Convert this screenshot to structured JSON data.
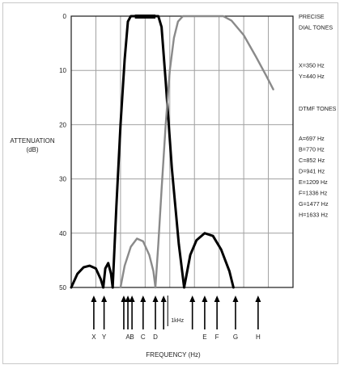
{
  "chart_data": {
    "type": "line",
    "title": "",
    "xlabel": "FREQUENCY (Hz)",
    "ylabel_lines": [
      "ATTENUATION",
      "(dB)"
    ],
    "ylim": [
      0,
      50
    ],
    "y_inverted": true,
    "y_ticks": [
      0,
      10,
      20,
      30,
      40,
      50
    ],
    "x_categories": [
      "X",
      "Y",
      "A",
      "B",
      "C",
      "D",
      "1kHz",
      "E",
      "F",
      "G",
      "H"
    ],
    "x_arrows": [
      {
        "label": "X",
        "x": 0.55
      },
      {
        "label": "Y",
        "x": 0.8
      },
      {
        "label": "",
        "x": 1.28
      },
      {
        "label": "A",
        "x": 1.38
      },
      {
        "label": "B",
        "x": 1.48
      },
      {
        "label": "C",
        "x": 1.75
      },
      {
        "label": "D",
        "x": 2.05
      },
      {
        "label": "",
        "x": 2.25
      },
      {
        "label": "",
        "x": 2.95
      },
      {
        "label": "E",
        "x": 3.25
      },
      {
        "label": "F",
        "x": 3.55
      },
      {
        "label": "G",
        "x": 4.0
      },
      {
        "label": "H",
        "x": 4.55
      }
    ],
    "marker_1khz": {
      "label": "1kHz",
      "x": 2.35
    },
    "x_range": [
      0,
      5.4
    ],
    "grid_x": [
      0.6,
      1.2,
      1.8,
      2.4,
      3.0,
      3.6,
      4.2,
      4.8
    ],
    "series": [
      {
        "style": "black",
        "segments": [
          [
            [
              0.0,
              50
            ],
            [
              0.15,
              47.5
            ],
            [
              0.3,
              46.3
            ],
            [
              0.45,
              46.0
            ],
            [
              0.6,
              46.5
            ],
            [
              0.72,
              48.5
            ],
            [
              0.78,
              50
            ]
          ],
          [
            [
              0.78,
              50
            ],
            [
              0.83,
              46.5
            ],
            [
              0.9,
              45.5
            ],
            [
              0.97,
              47.5
            ],
            [
              1.01,
              50
            ]
          ],
          [
            [
              1.01,
              50
            ],
            [
              1.1,
              35
            ],
            [
              1.2,
              20
            ],
            [
              1.3,
              8
            ],
            [
              1.38,
              1
            ],
            [
              1.45,
              0
            ],
            [
              1.7,
              0
            ],
            [
              2.12,
              0
            ],
            [
              2.2,
              2
            ],
            [
              2.3,
              12
            ],
            [
              2.45,
              28
            ],
            [
              2.62,
              42
            ],
            [
              2.75,
              50
            ]
          ],
          [
            [
              2.75,
              50
            ],
            [
              2.9,
              44
            ],
            [
              3.05,
              41.3
            ],
            [
              3.25,
              40.0
            ],
            [
              3.45,
              40.5
            ],
            [
              3.65,
              43
            ],
            [
              3.85,
              47
            ],
            [
              3.95,
              50
            ]
          ]
        ],
        "flat_top": [
          1.55,
          2.05
        ]
      },
      {
        "style": "gray",
        "segments": [
          [
            [
              1.2,
              50
            ],
            [
              1.3,
              46
            ],
            [
              1.45,
              42.5
            ],
            [
              1.6,
              41.0
            ],
            [
              1.75,
              41.5
            ],
            [
              1.9,
              44
            ],
            [
              2.0,
              47
            ],
            [
              2.05,
              50
            ]
          ],
          [
            [
              2.05,
              50
            ],
            [
              2.12,
              42
            ],
            [
              2.2,
              32
            ],
            [
              2.3,
              20
            ],
            [
              2.4,
              10
            ],
            [
              2.5,
              4
            ],
            [
              2.6,
              1
            ],
            [
              2.72,
              0
            ],
            [
              3.5,
              0
            ],
            [
              3.7,
              0
            ],
            [
              3.9,
              0.8
            ],
            [
              4.2,
              3.5
            ],
            [
              4.5,
              7.5
            ],
            [
              4.75,
              11
            ],
            [
              4.92,
              13.5
            ]
          ]
        ]
      }
    ],
    "right_labels": [
      {
        "text": "PRECISE",
        "y": 0
      },
      {
        "text": "DIAL TONES",
        "y": 2
      },
      {
        "text": "X=350 Hz",
        "y": 9
      },
      {
        "text": "Y=440 Hz",
        "y": 11
      },
      {
        "text": "DTMF TONES",
        "y": 17
      },
      {
        "text": "A=697 Hz",
        "y": 22.5
      },
      {
        "text": "B=770 Hz",
        "y": 24.5
      },
      {
        "text": "C=852 Hz",
        "y": 26.5
      },
      {
        "text": "D=941 Hz",
        "y": 28.5
      },
      {
        "text": "E=1209 Hz",
        "y": 30.5
      },
      {
        "text": "F=1336 Hz",
        "y": 32.5
      },
      {
        "text": "G=1477 Hz",
        "y": 34.5
      },
      {
        "text": "H=1633 Hz",
        "y": 36.5
      }
    ],
    "colors": {
      "black": "#000000",
      "gray": "#8a8a8a",
      "grid": "#a0a0a0",
      "frame": "#1a1a1a"
    },
    "grid": true
  }
}
